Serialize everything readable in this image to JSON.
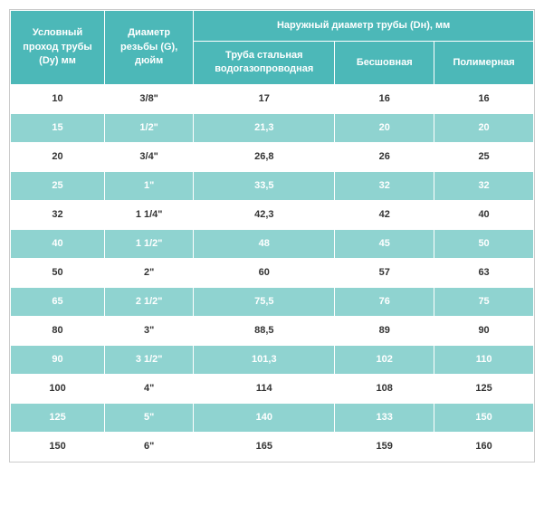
{
  "table": {
    "headers": {
      "col1": "Условный проход трубы (Dy) мм",
      "col2": "Диаметр резьбы (G), дюйм",
      "group": "Наружный диаметр трубы (Dн), мм",
      "col3": "Труба стальная водогазопроводная",
      "col4": "Бесшовная",
      "col5": "Полимерная"
    },
    "rows": [
      {
        "dy": "10",
        "g": "3/8\"",
        "steel": "17",
        "seamless": "16",
        "polymer": "16"
      },
      {
        "dy": "15",
        "g": "1/2\"",
        "steel": "21,3",
        "seamless": "20",
        "polymer": "20"
      },
      {
        "dy": "20",
        "g": "3/4\"",
        "steel": "26,8",
        "seamless": "26",
        "polymer": "25"
      },
      {
        "dy": "25",
        "g": "1\"",
        "steel": "33,5",
        "seamless": "32",
        "polymer": "32"
      },
      {
        "dy": "32",
        "g": "1 1/4\"",
        "steel": "42,3",
        "seamless": "42",
        "polymer": "40"
      },
      {
        "dy": "40",
        "g": "1 1/2\"",
        "steel": "48",
        "seamless": "45",
        "polymer": "50"
      },
      {
        "dy": "50",
        "g": "2\"",
        "steel": "60",
        "seamless": "57",
        "polymer": "63"
      },
      {
        "dy": "65",
        "g": "2 1/2\"",
        "steel": "75,5",
        "seamless": "76",
        "polymer": "75"
      },
      {
        "dy": "80",
        "g": "3\"",
        "steel": "88,5",
        "seamless": "89",
        "polymer": "90"
      },
      {
        "dy": "90",
        "g": "3 1/2\"",
        "steel": "101,3",
        "seamless": "102",
        "polymer": "110"
      },
      {
        "dy": "100",
        "g": "4\"",
        "steel": "114",
        "seamless": "108",
        "polymer": "125"
      },
      {
        "dy": "125",
        "g": "5\"",
        "steel": "140",
        "seamless": "133",
        "polymer": "150"
      },
      {
        "dy": "150",
        "g": "6\"",
        "steel": "165",
        "seamless": "159",
        "polymer": "160"
      }
    ],
    "colors": {
      "header_bg": "#4cb8b8",
      "header_text": "#ffffff",
      "odd_bg": "#ffffff",
      "odd_text": "#333333",
      "even_bg": "#8fd3d0",
      "even_text": "#ffffff",
      "border": "#ffffff",
      "outer_border": "#cccccc"
    }
  }
}
